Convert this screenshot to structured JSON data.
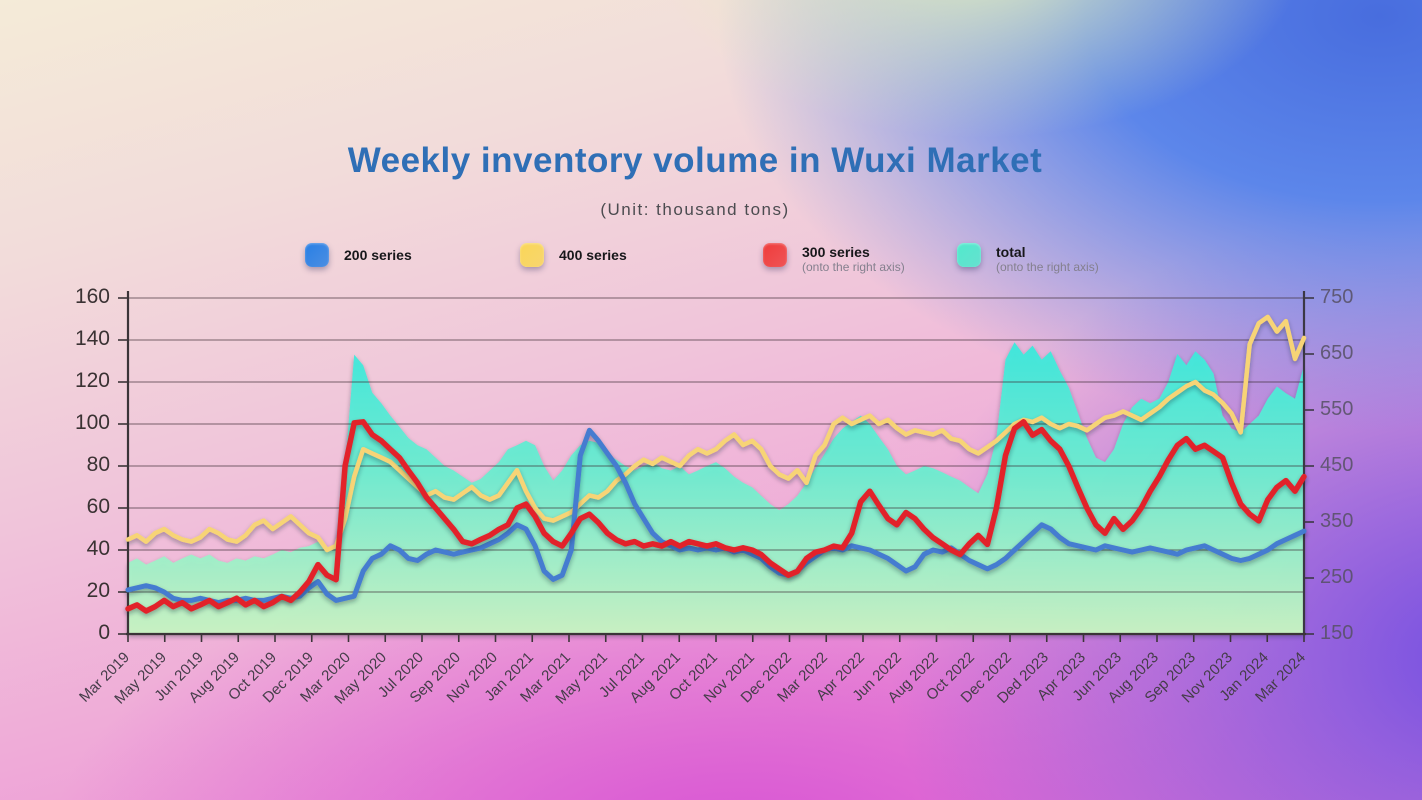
{
  "title": "Weekly inventory volume in Wuxi Market",
  "subtitle": "(Unit: thousand tons)",
  "legend": {
    "items": [
      {
        "label": "200 series",
        "caption": "",
        "color": "#2f82e4"
      },
      {
        "label": "400 series",
        "caption": "",
        "color": "#f9d65c"
      },
      {
        "label": "300 series",
        "caption": "(onto the right axis)",
        "color": "#ef4040"
      },
      {
        "label": "total",
        "caption": "(onto the right axis)",
        "color": "#55e8cd"
      }
    ]
  },
  "chart_data": {
    "type": "area+line",
    "title": "Weekly inventory volume in Wuxi Market",
    "unit": "thousand tons",
    "categories": [
      "Mar 2019",
      "May 2019",
      "Jun 2019",
      "Aug 2019",
      "Oct 2019",
      "Dec 2019",
      "Mar 2020",
      "May 2020",
      "Jul 2020",
      "Sep 2020",
      "Nov 2020",
      "Jan 2021",
      "Mar 2021",
      "May 2021",
      "Jul 2021",
      "Aug 2021",
      "Oct 2021",
      "Nov 2021",
      "Dec 2022",
      "Mar 2022",
      "Apr 2022",
      "Jun 2022",
      "Aug 2022",
      "Oct 2022",
      "Dec 2022",
      "Ded 2023",
      "Apr 2023",
      "Jun 2023",
      "Aug 2023",
      "Sep 2023",
      "Nov 2023",
      "Jan 2024",
      "Mar 2024"
    ],
    "left_axis": {
      "min": 0,
      "max": 160,
      "ticks": [
        0,
        20,
        40,
        60,
        80,
        100,
        120,
        140,
        160
      ]
    },
    "right_axis": {
      "min": 150,
      "max": 750,
      "ticks": [
        150,
        250,
        350,
        450,
        550,
        650,
        750
      ]
    },
    "grid": "horizontal",
    "legend_position": "top",
    "note": "series values are ~131 evenly spaced weekly samples spanning the full x range Mar 2019 - Mar 2024",
    "series": [
      {
        "name": "total",
        "axis": "right",
        "kind": "area",
        "color": "#3ce8dc",
        "color_bottom": "#c9f3c2",
        "values": [
          277,
          285,
          274,
          281,
          289,
          277,
          285,
          292,
          285,
          292,
          281,
          277,
          285,
          281,
          289,
          285,
          292,
          300,
          296,
          304,
          307,
          315,
          300,
          307,
          450,
          649,
          630,
          581,
          562,
          540,
          520,
          500,
          487,
          480,
          465,
          450,
          442,
          431,
          420,
          427,
          442,
          457,
          480,
          487,
          495,
          487,
          450,
          424,
          442,
          469,
          487,
          495,
          491,
          472,
          461,
          450,
          442,
          450,
          457,
          446,
          442,
          450,
          435,
          442,
          450,
          457,
          446,
          431,
          420,
          412,
          397,
          382,
          371,
          382,
          397,
          420,
          446,
          472,
          499,
          517,
          529,
          540,
          525,
          502,
          480,
          450,
          435,
          442,
          450,
          446,
          439,
          431,
          424,
          412,
          401,
          435,
          500,
          640,
          671,
          649,
          665,
          640,
          655,
          620,
          590,
          545,
          500,
          465,
          457,
          480,
          525,
          555,
          570,
          562,
          570,
          600,
          650,
          630,
          655,
          640,
          615,
          540,
          517,
          510,
          525,
          540,
          570,
          592,
          580,
          570,
          630
        ]
      },
      {
        "name": "400 series",
        "axis": "left",
        "kind": "line",
        "color": "#f7d476",
        "values": [
          45,
          47,
          44,
          48,
          50,
          47,
          45,
          44,
          46,
          50,
          48,
          45,
          44,
          47,
          52,
          54,
          50,
          53,
          56,
          52,
          48,
          46,
          40,
          42,
          55,
          75,
          88,
          86,
          84,
          82,
          78,
          74,
          70,
          66,
          68,
          65,
          64,
          67,
          70,
          66,
          64,
          66,
          72,
          78,
          68,
          60,
          55,
          54,
          56,
          58,
          62,
          66,
          65,
          68,
          73,
          76,
          80,
          83,
          81,
          84,
          82,
          80,
          85,
          88,
          86,
          88,
          92,
          95,
          90,
          92,
          88,
          80,
          76,
          74,
          78,
          72,
          85,
          90,
          100,
          103,
          100,
          102,
          104,
          100,
          102,
          98,
          95,
          97,
          96,
          95,
          97,
          93,
          92,
          88,
          86,
          89,
          92,
          96,
          100,
          102,
          101,
          103,
          100,
          98,
          100,
          99,
          97,
          100,
          103,
          104,
          106,
          104,
          102,
          105,
          108,
          112,
          115,
          118,
          120,
          116,
          114,
          110,
          105,
          96,
          138,
          148,
          151,
          144,
          149,
          131,
          141
        ]
      },
      {
        "name": "200 series",
        "axis": "left",
        "kind": "line",
        "color": "#447bd0",
        "values": [
          21,
          22,
          23,
          22,
          20,
          17,
          16,
          16,
          17,
          16,
          15,
          16,
          16,
          17,
          16,
          16,
          17,
          18,
          17,
          18,
          22,
          25,
          19,
          16,
          17,
          18,
          30,
          36,
          38,
          42,
          40,
          36,
          35,
          38,
          40,
          39,
          38,
          39,
          40,
          41,
          43,
          45,
          48,
          52,
          50,
          42,
          30,
          26,
          28,
          40,
          85,
          97,
          92,
          86,
          80,
          72,
          62,
          55,
          48,
          44,
          42,
          40,
          41,
          40,
          41,
          40,
          41,
          39,
          40,
          38,
          36,
          32,
          29,
          28,
          30,
          34,
          37,
          40,
          41,
          40,
          42,
          41,
          40,
          38,
          36,
          33,
          30,
          32,
          38,
          40,
          39,
          41,
          38,
          35,
          33,
          31,
          33,
          36,
          40,
          44,
          48,
          52,
          50,
          46,
          43,
          42,
          41,
          40,
          42,
          41,
          40,
          39,
          40,
          41,
          40,
          39,
          38,
          40,
          41,
          42,
          40,
          38,
          36,
          35,
          36,
          38,
          40,
          43,
          45,
          47,
          49
        ]
      },
      {
        "name": "300 series",
        "axis": "right",
        "kind": "line",
        "color": "#e2242a",
        "values": [
          195,
          202,
          191,
          199,
          210,
          199,
          206,
          195,
          202,
          210,
          199,
          206,
          214,
          202,
          210,
          199,
          206,
          217,
          210,
          225,
          244,
          274,
          255,
          247,
          450,
          527,
          529,
          506,
          495,
          480,
          465,
          442,
          420,
          394,
          375,
          356,
          337,
          315,
          311,
          319,
          326,
          337,
          345,
          375,
          382,
          360,
          330,
          315,
          307,
          330,
          356,
          364,
          349,
          330,
          318,
          311,
          315,
          307,
          311,
          307,
          315,
          307,
          315,
          311,
          307,
          311,
          304,
          300,
          304,
          300,
          292,
          277,
          266,
          255,
          262,
          285,
          296,
          300,
          307,
          304,
          330,
          386,
          405,
          380,
          356,
          345,
          367,
          356,
          337,
          322,
          311,
          300,
          292,
          311,
          326,
          310,
          375,
          469,
          517,
          529,
          505,
          515,
          495,
          480,
          450,
          412,
          375,
          345,
          330,
          356,
          337,
          352,
          375,
          405,
          431,
          461,
          487,
          499,
          480,
          487,
          476,
          465,
          420,
          382,
          364,
          352,
          390,
          412,
          424,
          405,
          431
        ]
      }
    ]
  }
}
